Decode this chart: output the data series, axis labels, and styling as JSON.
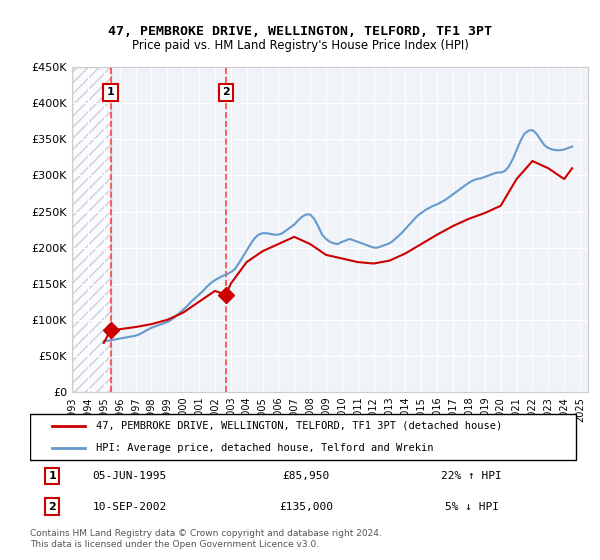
{
  "title": "47, PEMBROKE DRIVE, WELLINGTON, TELFORD, TF1 3PT",
  "subtitle": "Price paid vs. HM Land Registry's House Price Index (HPI)",
  "legend_line1": "47, PEMBROKE DRIVE, WELLINGTON, TELFORD, TF1 3PT (detached house)",
  "legend_line2": "HPI: Average price, detached house, Telford and Wrekin",
  "footer": "Contains HM Land Registry data © Crown copyright and database right 2024.\nThis data is licensed under the Open Government Licence v3.0.",
  "sale1_date": "05-JUN-1995",
  "sale1_price": 85950,
  "sale1_hpi": "22% ↑ HPI",
  "sale2_date": "10-SEP-2002",
  "sale2_price": 135000,
  "sale2_hpi": "5% ↓ HPI",
  "sale1_x": 1995.43,
  "sale2_x": 2002.69,
  "hpi_color": "#6699cc",
  "price_color": "#cc0000",
  "vline_color": "#ff4444",
  "background_hatch_color": "#ddddee",
  "ylim": [
    0,
    450000
  ],
  "xlim_start": 1993,
  "xlim_end": 2025.5,
  "yticks": [
    0,
    50000,
    100000,
    150000,
    200000,
    250000,
    300000,
    350000,
    400000,
    450000
  ],
  "ytick_labels": [
    "£0",
    "£50K",
    "£100K",
    "£150K",
    "£200K",
    "£250K",
    "£300K",
    "£350K",
    "£400K",
    "£450K"
  ],
  "hpi_data_x": [
    1995.0,
    1995.25,
    1995.5,
    1995.75,
    1996.0,
    1996.25,
    1996.5,
    1996.75,
    1997.0,
    1997.25,
    1997.5,
    1997.75,
    1998.0,
    1998.25,
    1998.5,
    1998.75,
    1999.0,
    1999.25,
    1999.5,
    1999.75,
    2000.0,
    2000.25,
    2000.5,
    2000.75,
    2001.0,
    2001.25,
    2001.5,
    2001.75,
    2002.0,
    2002.25,
    2002.5,
    2002.75,
    2003.0,
    2003.25,
    2003.5,
    2003.75,
    2004.0,
    2004.25,
    2004.5,
    2004.75,
    2005.0,
    2005.25,
    2005.5,
    2005.75,
    2006.0,
    2006.25,
    2006.5,
    2006.75,
    2007.0,
    2007.25,
    2007.5,
    2007.75,
    2008.0,
    2008.25,
    2008.5,
    2008.75,
    2009.0,
    2009.25,
    2009.5,
    2009.75,
    2010.0,
    2010.25,
    2010.5,
    2010.75,
    2011.0,
    2011.25,
    2011.5,
    2011.75,
    2012.0,
    2012.25,
    2012.5,
    2012.75,
    2013.0,
    2013.25,
    2013.5,
    2013.75,
    2014.0,
    2014.25,
    2014.5,
    2014.75,
    2015.0,
    2015.25,
    2015.5,
    2015.75,
    2016.0,
    2016.25,
    2016.5,
    2016.75,
    2017.0,
    2017.25,
    2017.5,
    2017.75,
    2018.0,
    2018.25,
    2018.5,
    2018.75,
    2019.0,
    2019.25,
    2019.5,
    2019.75,
    2020.0,
    2020.25,
    2020.5,
    2020.75,
    2021.0,
    2021.25,
    2021.5,
    2021.75,
    2022.0,
    2022.25,
    2022.5,
    2022.75,
    2023.0,
    2023.25,
    2023.5,
    2023.75,
    2024.0,
    2024.25,
    2024.5
  ],
  "hpi_data_y": [
    70000,
    71000,
    72000,
    73000,
    74000,
    75000,
    76000,
    77000,
    78000,
    80000,
    83000,
    86000,
    89000,
    91000,
    93000,
    95000,
    97000,
    100000,
    104000,
    109000,
    114000,
    119000,
    125000,
    130000,
    135000,
    140000,
    146000,
    151000,
    155000,
    158000,
    161000,
    163000,
    166000,
    170000,
    178000,
    187000,
    196000,
    205000,
    213000,
    218000,
    220000,
    220000,
    219000,
    218000,
    218000,
    220000,
    224000,
    228000,
    232000,
    238000,
    243000,
    246000,
    246000,
    240000,
    230000,
    218000,
    212000,
    208000,
    206000,
    205000,
    208000,
    210000,
    212000,
    210000,
    208000,
    206000,
    204000,
    202000,
    200000,
    200000,
    202000,
    204000,
    206000,
    210000,
    215000,
    220000,
    226000,
    232000,
    238000,
    244000,
    248000,
    252000,
    255000,
    258000,
    260000,
    263000,
    266000,
    270000,
    274000,
    278000,
    282000,
    286000,
    290000,
    293000,
    295000,
    296000,
    298000,
    300000,
    302000,
    304000,
    304000,
    306000,
    312000,
    322000,
    335000,
    348000,
    358000,
    362000,
    363000,
    358000,
    350000,
    342000,
    338000,
    336000,
    335000,
    335000,
    336000,
    338000,
    340000
  ],
  "price_data_x": [
    1995.0,
    1995.43,
    1995.43,
    1996.0,
    1997.0,
    1998.0,
    1999.0,
    2000.0,
    2001.0,
    2002.0,
    2002.69,
    2002.69,
    2003.0,
    2004.0,
    2005.0,
    2006.0,
    2007.0,
    2008.0,
    2009.0,
    2010.0,
    2011.0,
    2012.0,
    2013.0,
    2014.0,
    2015.0,
    2016.0,
    2017.0,
    2018.0,
    2019.0,
    2020.0,
    2021.0,
    2022.0,
    2023.0,
    2024.0,
    2024.5
  ],
  "price_data_y": [
    68000,
    85950,
    85950,
    87000,
    90000,
    94000,
    100000,
    110000,
    125000,
    140000,
    135000,
    135000,
    150000,
    180000,
    195000,
    205000,
    215000,
    205000,
    190000,
    185000,
    180000,
    178000,
    182000,
    192000,
    205000,
    218000,
    230000,
    240000,
    248000,
    258000,
    295000,
    320000,
    310000,
    295000,
    310000
  ]
}
